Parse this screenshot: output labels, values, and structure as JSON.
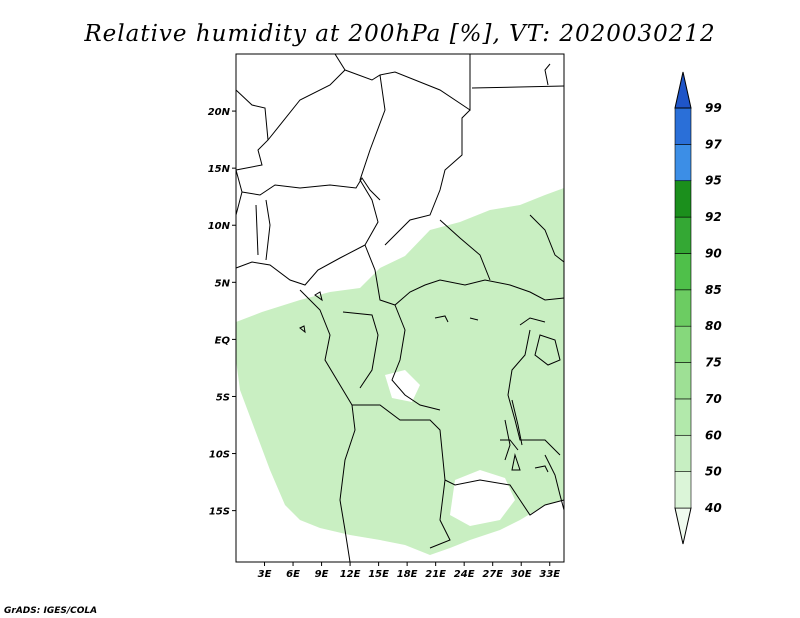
{
  "title": "Relative humidity at 200hPa [%], VT: 2020030212",
  "credit": "GrADS: IGES/COLA",
  "lon_ticks": [
    "3E",
    "6E",
    "9E",
    "12E",
    "15E",
    "18E",
    "21E",
    "24E",
    "27E",
    "30E",
    "33E"
  ],
  "lon_values": [
    3,
    6,
    9,
    12,
    15,
    18,
    21,
    24,
    27,
    30,
    33
  ],
  "lat_ticks": [
    "20N",
    "15N",
    "10N",
    "5N",
    "EQ",
    "5S",
    "10S",
    "15S"
  ],
  "lat_values": [
    20,
    15,
    10,
    5,
    0,
    -5,
    -10,
    -15
  ],
  "map_extent": {
    "lon": [
      0,
      34.5
    ],
    "lat": [
      -19.5,
      25
    ]
  },
  "colorbar": {
    "labels": [
      "40",
      "50",
      "60",
      "70",
      "75",
      "80",
      "85",
      "90",
      "92",
      "95",
      "97",
      "99"
    ],
    "colors": [
      "#f0fbef",
      "#dbf5d8",
      "#c7efc2",
      "#b2e9ab",
      "#9ee095",
      "#86d87c",
      "#6ccc62",
      "#4fc04a",
      "#34a834",
      "#1b8f1c",
      "#3c8ee6",
      "#2a6fd8",
      "#1f55c8"
    ]
  },
  "humidity_fill_color": "#c9efc2"
}
